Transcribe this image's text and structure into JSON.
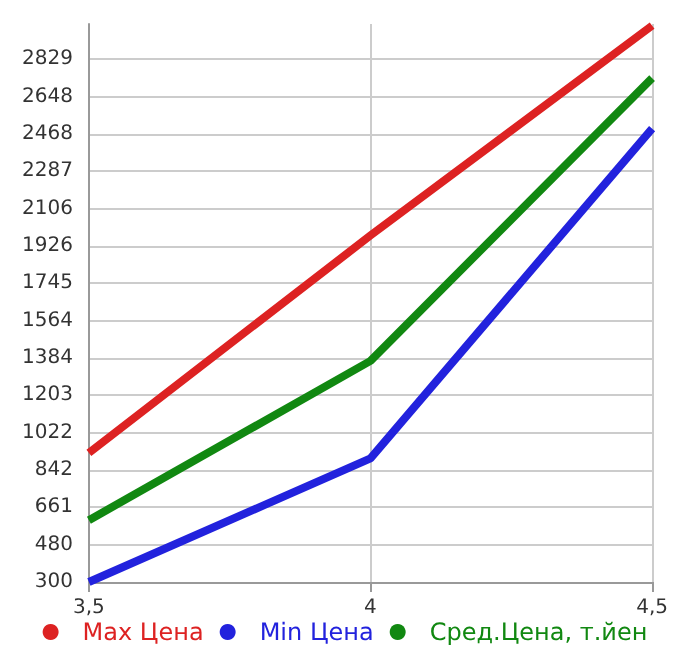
{
  "chart_data": {
    "type": "line",
    "x": [
      3.5,
      4,
      4.5
    ],
    "series": [
      {
        "name": "Max Цена",
        "color": "#dd2222",
        "values": [
          925,
          1977,
          2992
        ]
      },
      {
        "name": "Min Цена",
        "color": "#2222dd",
        "values": [
          300,
          898,
          2494
        ]
      },
      {
        "name": "Сред.Цена, т.йен",
        "color": "#118811",
        "values": [
          599,
          1370,
          2738
        ]
      }
    ],
    "xlim": [
      3.5,
      4.5
    ],
    "xticks": [
      {
        "value": 3.5,
        "label": "3,5"
      },
      4,
      {
        "value": 4.5,
        "label": "4,5"
      }
    ],
    "ylim": [
      300,
      3000
    ],
    "yticks": [
      300,
      480,
      661,
      842,
      1022,
      1203,
      1384,
      1564,
      1745,
      1926,
      2106,
      2287,
      2468,
      2648,
      2829
    ],
    "grid": true,
    "legend": "bottom",
    "marker": "none",
    "line_style": "solid"
  }
}
